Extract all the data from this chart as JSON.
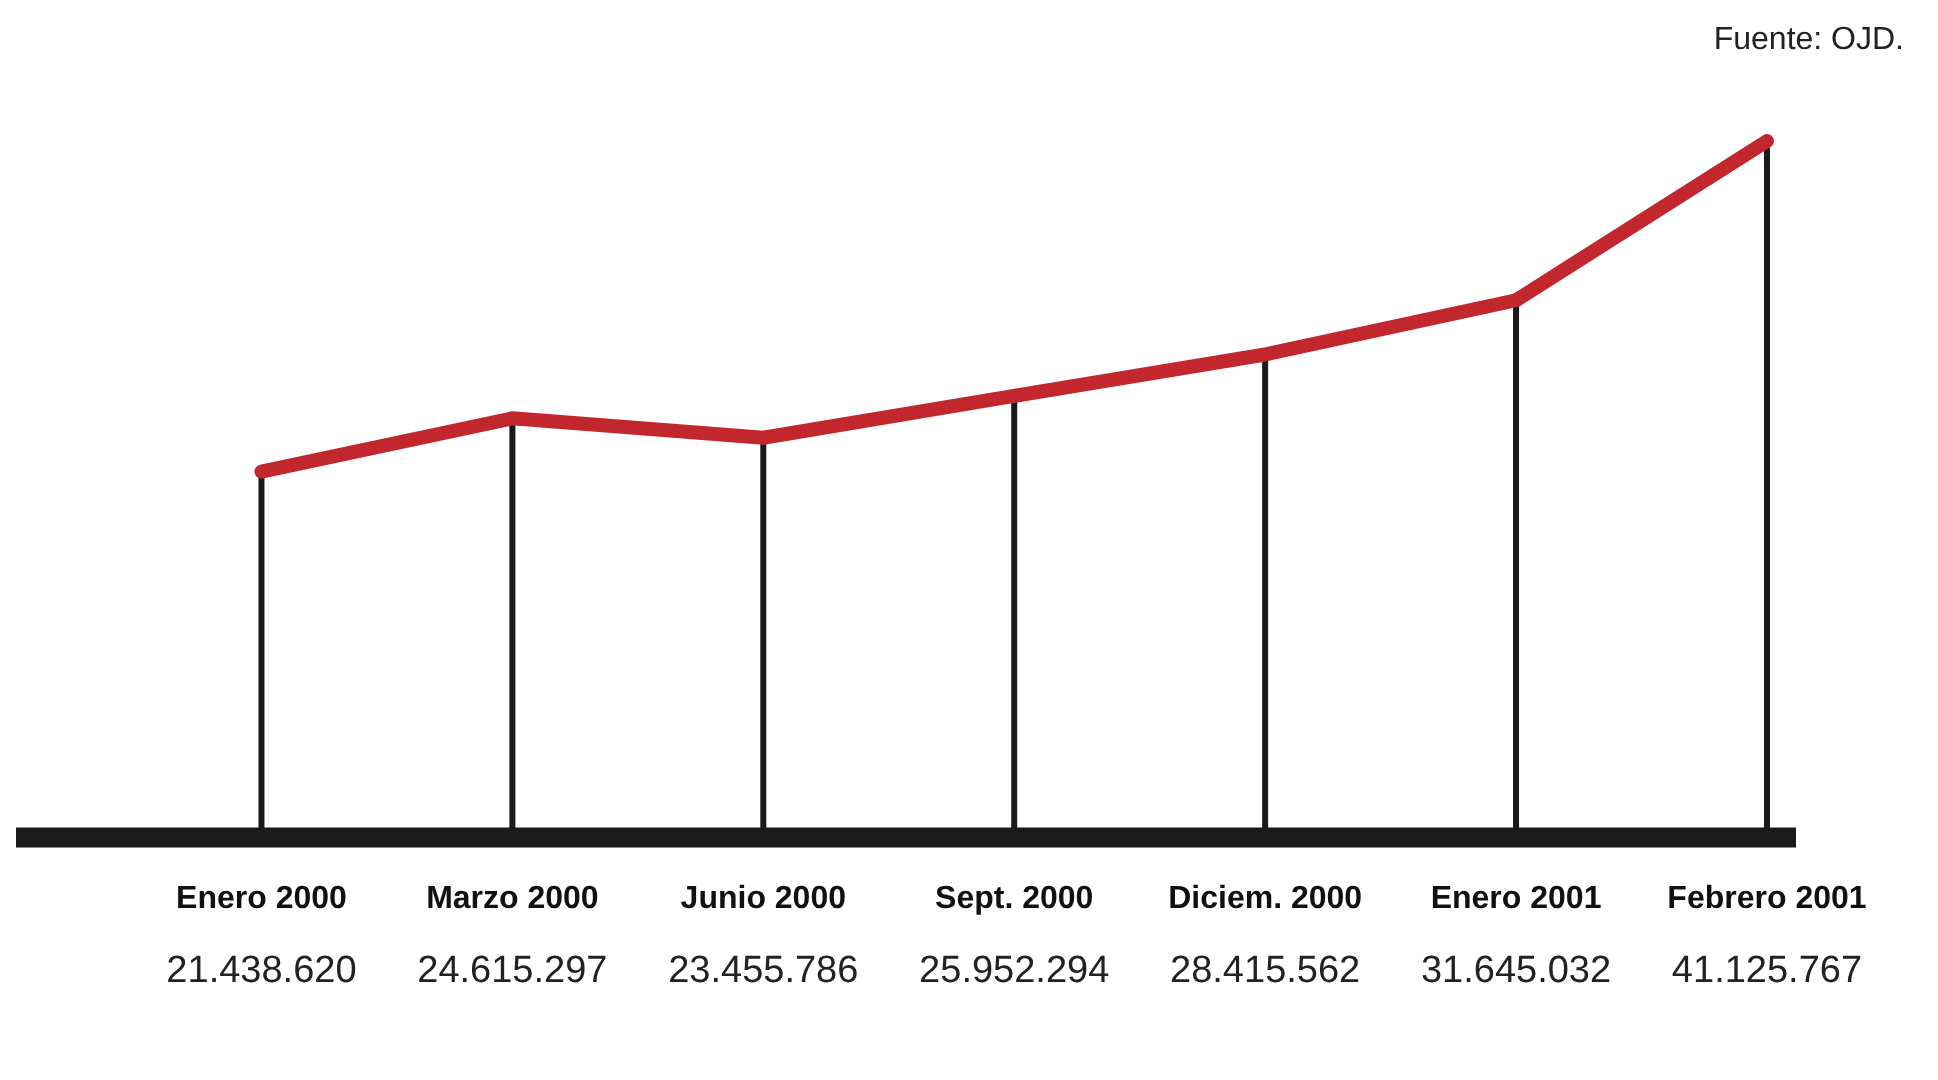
{
  "chart_data": {
    "type": "line",
    "categories": [
      "Enero 2000",
      "Marzo 2000",
      "Junio 2000",
      "Sept. 2000",
      "Diciem. 2000",
      "Enero 2001",
      "Febrero 2001"
    ],
    "series": [
      {
        "color": "#c1272d",
        "values": [
          21438620,
          24615297,
          23455786,
          25952294,
          28415562,
          31645032,
          41125767
        ],
        "value_labels": [
          "21.438.620",
          "24.615.297",
          "23.455.786",
          "25.952.294",
          "28.415.562",
          "31.645.032",
          "41.125.767"
        ]
      }
    ],
    "annotations": [
      "Fuente: OJD."
    ],
    "marker": "none",
    "line_style": "solid",
    "grid": "x",
    "legend": false
  }
}
